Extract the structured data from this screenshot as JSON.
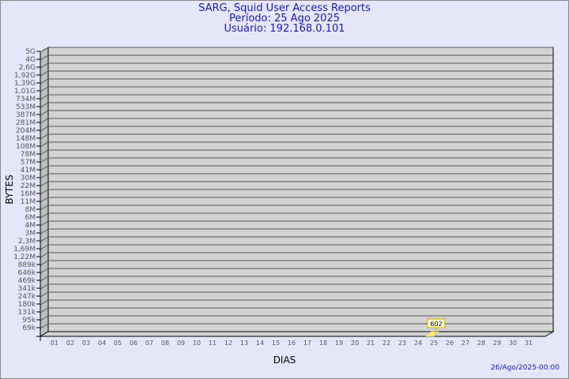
{
  "header": {
    "title": "SARG, Squid User Access Reports",
    "period": "Período: 25 Ago 2025",
    "user": "Usuário: 192.168.0.101"
  },
  "footer": {
    "generated": "26/Ago/2025-00:00"
  },
  "colors": {
    "background": "#e6e6fa",
    "plot": "#d3d3d3",
    "side": "#c0c0c0",
    "bar": "#ffe680",
    "text": "#1a1aa6"
  },
  "chart_data": {
    "type": "bar",
    "xlabel": "DIAS",
    "ylabel": "BYTES",
    "y_scale": "log",
    "y_ticks": [
      "5G",
      "4G",
      "2,6G",
      "1,92G",
      "1,39G",
      "1,01G",
      "734M",
      "533M",
      "387M",
      "281M",
      "204M",
      "148M",
      "108M",
      "78M",
      "57M",
      "41M",
      "30M",
      "22M",
      "16M",
      "11M",
      "8M",
      "6M",
      "4M",
      "3M",
      "2,3M",
      "1,69M",
      "1,22M",
      "889k",
      "646k",
      "469k",
      "341k",
      "247k",
      "180k",
      "131k",
      "95k",
      "69k"
    ],
    "categories": [
      "01",
      "02",
      "03",
      "04",
      "05",
      "06",
      "07",
      "08",
      "09",
      "10",
      "11",
      "12",
      "13",
      "14",
      "15",
      "16",
      "17",
      "18",
      "19",
      "20",
      "21",
      "22",
      "23",
      "24",
      "25",
      "26",
      "27",
      "28",
      "29",
      "30",
      "31"
    ],
    "values": [
      0,
      0,
      0,
      0,
      0,
      0,
      0,
      0,
      0,
      0,
      0,
      0,
      0,
      0,
      0,
      0,
      0,
      0,
      0,
      0,
      0,
      0,
      0,
      0,
      602,
      0,
      0,
      0,
      0,
      0,
      0
    ],
    "data_labels": [
      {
        "category": "25",
        "label": "602"
      }
    ],
    "grid": true
  }
}
